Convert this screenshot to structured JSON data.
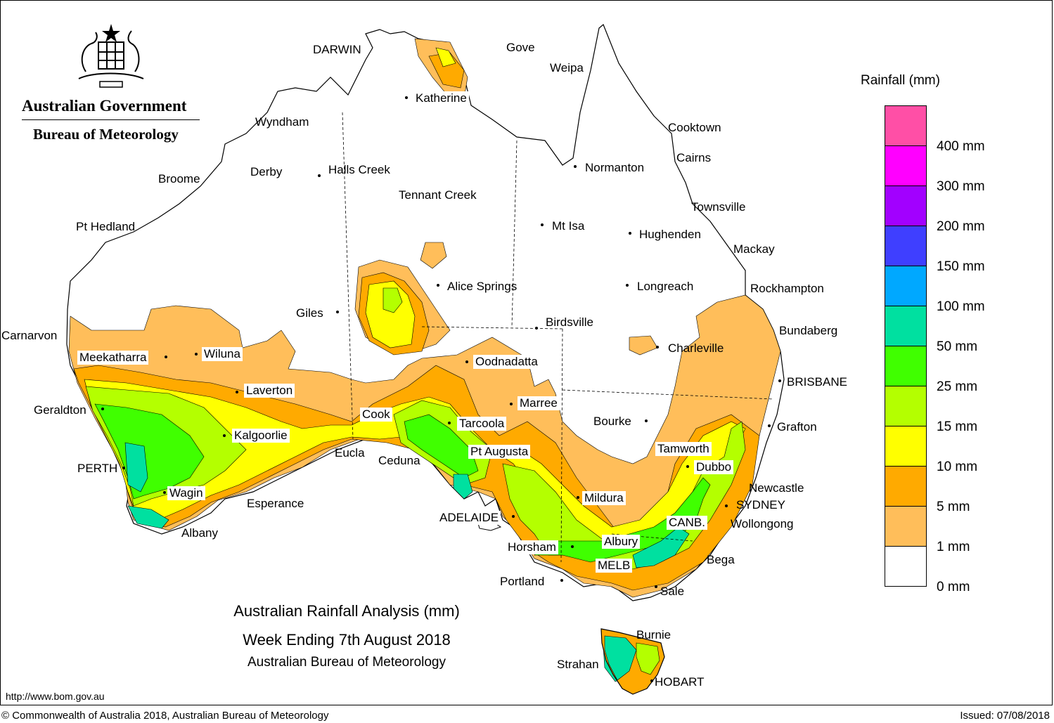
{
  "header": {
    "government": "Australian Government",
    "department": "Bureau of Meteorology",
    "logo_icon": "coat-of-arms-icon"
  },
  "title": {
    "line1": "Australian Rainfall Analysis (mm)",
    "line2": "Week Ending 7th August 2018",
    "line3": "Australian Bureau of Meteorology"
  },
  "legend": {
    "title": "Rainfall (mm)",
    "levels": [
      {
        "label": "400 mm",
        "color": "#ff4fa6"
      },
      {
        "label": "300 mm",
        "color": "#ff00ff"
      },
      {
        "label": "200 mm",
        "color": "#a200ff"
      },
      {
        "label": "150 mm",
        "color": "#3f3fff"
      },
      {
        "label": "100 mm",
        "color": "#00a8ff"
      },
      {
        "label": "50 mm",
        "color": "#00e0a0"
      },
      {
        "label": "25 mm",
        "color": "#40ff00"
      },
      {
        "label": "15 mm",
        "color": "#b4ff00"
      },
      {
        "label": "10 mm",
        "color": "#ffff00"
      },
      {
        "label": "5 mm",
        "color": "#ffaa00"
      },
      {
        "label": "1 mm",
        "color": "#ffbe5a"
      },
      {
        "label": "0 mm",
        "color": "#ffffff"
      }
    ]
  },
  "places": {
    "darwin": "DARWIN",
    "gove": "Gove",
    "weipa": "Weipa",
    "katherine": "Katherine",
    "wyndham": "Wyndham",
    "cooktown": "Cooktown",
    "cairns": "Cairns",
    "normanton": "Normanton",
    "derby": "Derby",
    "halls_creek": "Halls Creek",
    "broome": "Broome",
    "tennant_creek": "Tennant Creek",
    "townsville": "Townsville",
    "pt_hedland": "Pt Hedland",
    "mt_isa": "Mt Isa",
    "hughenden": "Hughenden",
    "mackay": "Mackay",
    "alice_springs": "Alice Springs",
    "longreach": "Longreach",
    "rockhampton": "Rockhampton",
    "giles": "Giles",
    "birdsville": "Birdsville",
    "bundaberg": "Bundaberg",
    "carnarvon": "Carnarvon",
    "charleville": "Charleville",
    "meekatharra": "Meekatharra",
    "wiluna": "Wiluna",
    "oodnadatta": "Oodnadatta",
    "brisbane": "BRISBANE",
    "laverton": "Laverton",
    "marree": "Marree",
    "geraldton": "Geraldton",
    "cook": "Cook",
    "tarcoola": "Tarcoola",
    "bourke": "Bourke",
    "grafton": "Grafton",
    "kalgoorlie": "Kalgoorlie",
    "tamworth": "Tamworth",
    "eucla": "Eucla",
    "pt_augusta": "Pt Augusta",
    "ceduna": "Ceduna",
    "perth": "PERTH",
    "dubbo": "Dubbo",
    "newcastle": "Newcastle",
    "wagin": "Wagin",
    "mildura": "Mildura",
    "sydney": "SYDNEY",
    "esperance": "Esperance",
    "adelaide": "ADELAIDE",
    "canberra": "CANB.",
    "wollongong": "Wollongong",
    "albany": "Albany",
    "albury": "Albury",
    "horsham": "Horsham",
    "bega": "Bega",
    "melbourne": "MELB",
    "portland": "Portland",
    "sale": "Sale",
    "burnie": "Burnie",
    "strahan": "Strahan",
    "hobart": "HOBART"
  },
  "footer": {
    "url": "http://www.bom.gov.au",
    "copyright": "© Commonwealth of Australia 2018, Australian Bureau of Meteorology",
    "issued": "Issued: 07/08/2018"
  }
}
